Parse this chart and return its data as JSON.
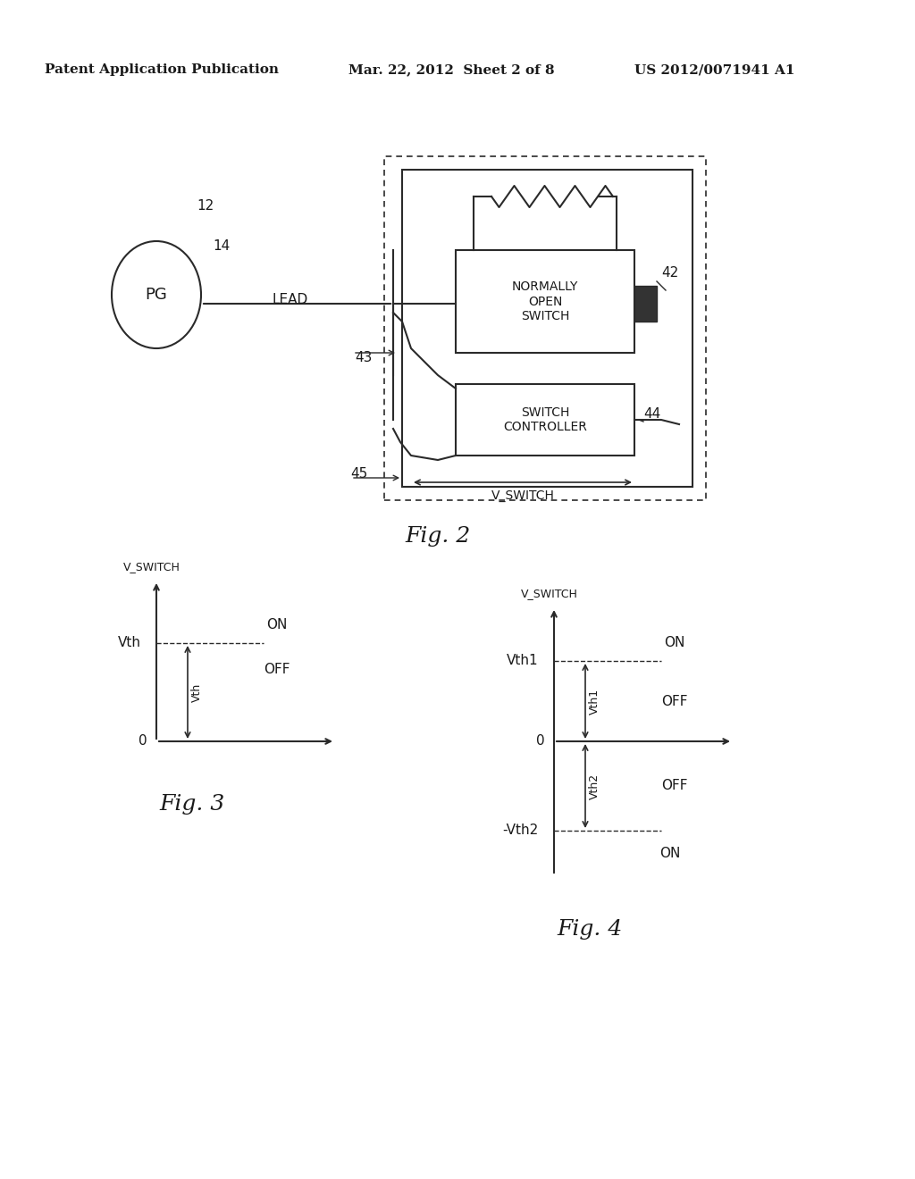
{
  "bg_color": "#ffffff",
  "header_left": "Patent Application Publication",
  "header_mid": "Mar. 22, 2012  Sheet 2 of 8",
  "header_right": "US 2012/0071941 A1",
  "fig2_label": "Fig. 2",
  "fig3_label": "Fig. 3",
  "fig4_label": "Fig. 4",
  "text_color": "#1a1a1a",
  "line_color": "#2a2a2a"
}
